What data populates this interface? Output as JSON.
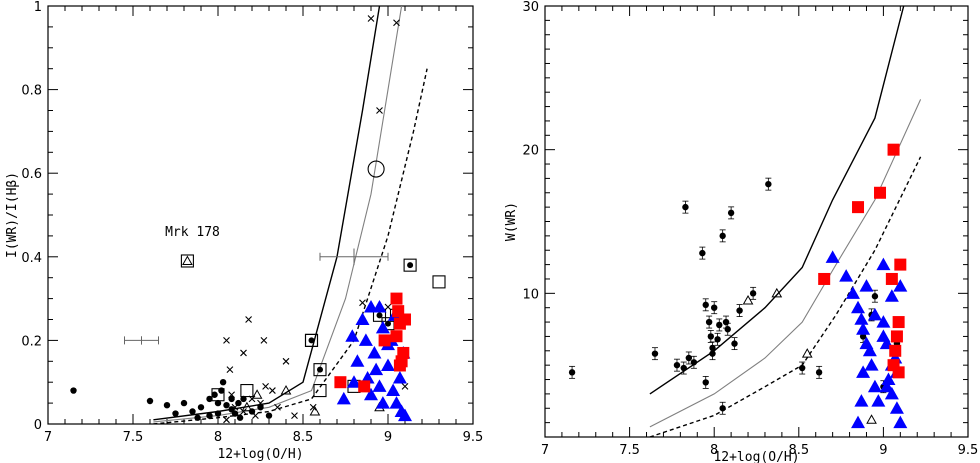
{
  "chart_data": [
    {
      "type": "scatter",
      "panel": "left",
      "xlabel": "12+log(O/H)",
      "ylabel": "I(WR)/I(Hβ)",
      "xlim": [
        7,
        9.5
      ],
      "ylim": [
        0,
        1
      ],
      "xticks": [
        7,
        7.5,
        8,
        8.5,
        9,
        9.5
      ],
      "xtick_labels": [
        "7",
        "7.5",
        "8",
        "8.5",
        "9",
        "9.5"
      ],
      "yticks": [
        0,
        0.2,
        0.4,
        0.6,
        0.8,
        1
      ],
      "ytick_labels": [
        "0",
        "0.2",
        "0.4",
        "0.6",
        "0.8",
        "1"
      ],
      "annotation": {
        "text": "Mrk 178",
        "x": 7.85,
        "y": 0.45
      },
      "curves": [
        {
          "style": "solid-black",
          "points": [
            [
              7.62,
              0.01
            ],
            [
              8.0,
              0.03
            ],
            [
              8.3,
              0.05
            ],
            [
              8.5,
              0.1
            ],
            [
              8.7,
              0.4
            ],
            [
              8.85,
              0.75
            ],
            [
              8.95,
              1.0
            ]
          ]
        },
        {
          "style": "solid-gray",
          "points": [
            [
              7.62,
              0.005
            ],
            [
              8.0,
              0.02
            ],
            [
              8.3,
              0.04
            ],
            [
              8.55,
              0.08
            ],
            [
              8.75,
              0.3
            ],
            [
              8.9,
              0.55
            ],
            [
              9.0,
              0.8
            ],
            [
              9.08,
              1.0
            ]
          ]
        },
        {
          "style": "dashed-black",
          "points": [
            [
              7.62,
              0.0
            ],
            [
              8.0,
              0.015
            ],
            [
              8.3,
              0.03
            ],
            [
              8.55,
              0.06
            ],
            [
              8.8,
              0.2
            ],
            [
              9.0,
              0.45
            ],
            [
              9.15,
              0.7
            ],
            [
              9.23,
              0.85
            ]
          ]
        }
      ],
      "error_bars": [
        {
          "x": 7.55,
          "y": 0.2,
          "xerr": 0.1,
          "yerr": 0.01
        },
        {
          "x": 8.8,
          "y": 0.4,
          "xerr": 0.2,
          "yerr": 0.02
        }
      ],
      "series": [
        {
          "marker": "filled-circle",
          "points": [
            [
              7.15,
              0.08
            ],
            [
              7.6,
              0.055
            ],
            [
              7.7,
              0.045
            ],
            [
              7.75,
              0.025
            ],
            [
              7.8,
              0.05
            ],
            [
              7.85,
              0.03
            ],
            [
              7.9,
              0.04
            ],
            [
              7.95,
              0.06
            ],
            [
              7.98,
              0.07
            ],
            [
              8.0,
              0.05
            ],
            [
              8.02,
              0.08
            ],
            [
              8.05,
              0.045
            ],
            [
              8.08,
              0.035
            ],
            [
              8.1,
              0.025
            ],
            [
              8.12,
              0.05
            ],
            [
              8.15,
              0.06
            ],
            [
              8.2,
              0.03
            ],
            [
              8.25,
              0.04
            ],
            [
              8.3,
              0.02
            ],
            [
              7.88,
              0.015
            ],
            [
              7.95,
              0.02
            ],
            [
              8.0,
              0.025
            ],
            [
              8.03,
              0.1
            ],
            [
              8.08,
              0.06
            ],
            [
              8.13,
              0.015
            ]
          ]
        },
        {
          "marker": "cross",
          "points": [
            [
              8.05,
              0.2
            ],
            [
              8.18,
              0.25
            ],
            [
              8.27,
              0.2
            ],
            [
              8.4,
              0.15
            ],
            [
              8.15,
              0.17
            ],
            [
              8.07,
              0.13
            ],
            [
              8.28,
              0.09
            ],
            [
              8.32,
              0.08
            ],
            [
              8.2,
              0.06
            ],
            [
              8.25,
              0.05
            ],
            [
              8.35,
              0.04
            ],
            [
              8.1,
              0.04
            ],
            [
              8.22,
              0.02
            ],
            [
              8.05,
              0.01
            ],
            [
              8.15,
              0.03
            ],
            [
              8.08,
              0.07
            ],
            [
              8.9,
              0.97
            ],
            [
              9.05,
              0.96
            ],
            [
              8.95,
              0.75
            ],
            [
              8.85,
              0.29
            ],
            [
              9.0,
              0.28
            ],
            [
              8.56,
              0.04
            ],
            [
              8.45,
              0.02
            ],
            [
              9.1,
              0.09
            ]
          ]
        },
        {
          "marker": "open-triangle",
          "points": [
            [
              8.23,
              0.07
            ],
            [
              8.4,
              0.08
            ],
            [
              8.57,
              0.03
            ],
            [
              8.95,
              0.04
            ],
            [
              8.17,
              0.04
            ],
            [
              7.82,
              0.39
            ]
          ]
        },
        {
          "marker": "open-square",
          "points": [
            [
              8.17,
              0.08
            ],
            [
              8.6,
              0.08
            ],
            [
              8.8,
              0.09
            ],
            [
              9.05,
              0.26
            ],
            [
              9.3,
              0.34
            ],
            [
              7.82,
              0.39
            ],
            [
              8.0,
              0.07
            ],
            [
              8.55,
              0.2
            ]
          ]
        },
        {
          "marker": "open-circle",
          "points": [
            [
              8.93,
              0.61
            ]
          ]
        },
        {
          "marker": "circled-dot",
          "points": [
            [
              9.13,
              0.38
            ],
            [
              8.55,
              0.2
            ],
            [
              8.6,
              0.13
            ],
            [
              9.0,
              0.24
            ],
            [
              8.95,
              0.26
            ]
          ]
        },
        {
          "marker": "blue-triangle",
          "color": "#0000ff",
          "points": [
            [
              8.74,
              0.06
            ],
            [
              8.8,
              0.1
            ],
            [
              8.82,
              0.15
            ],
            [
              8.85,
              0.25
            ],
            [
              8.87,
              0.2
            ],
            [
              8.9,
              0.28
            ],
            [
              8.92,
              0.17
            ],
            [
              8.93,
              0.13
            ],
            [
              8.95,
              0.09
            ],
            [
              8.97,
              0.23
            ],
            [
              9.0,
              0.14
            ],
            [
              9.02,
              0.2
            ],
            [
              9.03,
              0.08
            ],
            [
              9.05,
              0.05
            ],
            [
              9.07,
              0.11
            ],
            [
              9.08,
              0.03
            ],
            [
              9.09,
              0.17
            ],
            [
              9.1,
              0.02
            ],
            [
              8.95,
              0.28
            ],
            [
              8.97,
              0.05
            ],
            [
              8.88,
              0.11
            ],
            [
              8.9,
              0.07
            ],
            [
              9.0,
              0.19
            ],
            [
              9.04,
              0.26
            ],
            [
              8.79,
              0.21
            ]
          ]
        },
        {
          "marker": "red-square",
          "color": "#ff0000",
          "points": [
            [
              8.72,
              0.1
            ],
            [
              8.86,
              0.09
            ],
            [
              8.98,
              0.2
            ],
            [
              9.05,
              0.3
            ],
            [
              9.06,
              0.27
            ],
            [
              9.07,
              0.24
            ],
            [
              9.08,
              0.15
            ],
            [
              9.09,
              0.17
            ],
            [
              9.1,
              0.25
            ],
            [
              9.05,
              0.21
            ],
            [
              9.07,
              0.14
            ]
          ]
        }
      ]
    },
    {
      "type": "scatter",
      "panel": "right",
      "xlabel": "12+log(O/H)",
      "ylabel": "W(WR)",
      "xlim": [
        7,
        9.5
      ],
      "ylim": [
        0,
        30
      ],
      "xticks": [
        7,
        7.5,
        8,
        8.5,
        9,
        9.5
      ],
      "xtick_labels": [
        "7",
        "7.5",
        "8",
        "8.5",
        "9",
        "9.5"
      ],
      "yticks": [
        10,
        20,
        30
      ],
      "ytick_labels": [
        "10",
        "20",
        "30"
      ],
      "curves": [
        {
          "style": "solid-black",
          "points": [
            [
              7.62,
              3.0
            ],
            [
              8.0,
              6.0
            ],
            [
              8.3,
              9.0
            ],
            [
              8.52,
              11.8
            ],
            [
              8.7,
              16.5
            ],
            [
              8.95,
              22.2
            ],
            [
              9.12,
              30.0
            ]
          ]
        },
        {
          "style": "solid-gray",
          "points": [
            [
              7.62,
              0.7
            ],
            [
              8.0,
              3.0
            ],
            [
              8.3,
              5.5
            ],
            [
              8.52,
              8.0
            ],
            [
              8.72,
              12.0
            ],
            [
              8.95,
              16.5
            ],
            [
              9.22,
              23.5
            ]
          ]
        },
        {
          "style": "dashed-black",
          "points": [
            [
              7.62,
              0.0
            ],
            [
              8.0,
              1.5
            ],
            [
              8.3,
              3.5
            ],
            [
              8.52,
              5.0
            ],
            [
              8.72,
              8.5
            ],
            [
              8.95,
              13.0
            ],
            [
              9.22,
              19.5
            ]
          ]
        }
      ],
      "series": [
        {
          "marker": "filled-circle-errorbar",
          "points": [
            [
              7.16,
              4.5
            ],
            [
              7.65,
              5.8
            ],
            [
              7.78,
              5.0
            ],
            [
              7.83,
              16.0
            ],
            [
              7.85,
              5.5
            ],
            [
              7.93,
              12.8
            ],
            [
              7.95,
              9.2
            ],
            [
              7.97,
              8.0
            ],
            [
              7.98,
              7.0
            ],
            [
              7.99,
              5.8
            ],
            [
              8.0,
              9.0
            ],
            [
              8.02,
              6.8
            ],
            [
              8.05,
              14.0
            ],
            [
              8.07,
              8.0
            ],
            [
              8.08,
              7.5
            ],
            [
              8.1,
              15.6
            ],
            [
              8.12,
              6.5
            ],
            [
              8.15,
              8.8
            ],
            [
              8.32,
              17.6
            ],
            [
              8.23,
              10.0
            ],
            [
              8.52,
              4.8
            ],
            [
              8.62,
              4.5
            ],
            [
              8.95,
              9.8
            ],
            [
              8.88,
              7.0
            ],
            [
              8.93,
              8.5
            ],
            [
              9.08,
              6.5
            ],
            [
              9.0,
              3.5
            ],
            [
              8.05,
              2.0
            ],
            [
              7.95,
              3.8
            ],
            [
              7.88,
              5.2
            ],
            [
              7.82,
              4.8
            ],
            [
              7.99,
              6.2
            ],
            [
              8.03,
              7.8
            ]
          ]
        },
        {
          "marker": "open-triangle",
          "points": [
            [
              8.37,
              10.0
            ],
            [
              8.55,
              5.8
            ],
            [
              8.93,
              1.2
            ],
            [
              8.2,
              9.5
            ]
          ]
        },
        {
          "marker": "blue-triangle",
          "color": "#0000ff",
          "points": [
            [
              8.7,
              12.5
            ],
            [
              8.78,
              11.2
            ],
            [
              8.82,
              10.0
            ],
            [
              8.85,
              9.0
            ],
            [
              8.87,
              8.2
            ],
            [
              8.88,
              7.5
            ],
            [
              8.9,
              10.5
            ],
            [
              8.92,
              6.0
            ],
            [
              8.93,
              5.0
            ],
            [
              8.95,
              3.5
            ],
            [
              8.97,
              2.5
            ],
            [
              9.0,
              8.0
            ],
            [
              9.02,
              6.5
            ],
            [
              9.03,
              4.0
            ],
            [
              9.05,
              3.0
            ],
            [
              9.07,
              5.5
            ],
            [
              9.08,
              2.0
            ],
            [
              9.1,
              1.0
            ],
            [
              8.85,
              1.0
            ],
            [
              8.87,
              2.5
            ],
            [
              8.88,
              4.5
            ],
            [
              9.0,
              12.0
            ],
            [
              9.05,
              9.8
            ],
            [
              9.1,
              10.5
            ],
            [
              8.9,
              6.5
            ],
            [
              8.95,
              8.5
            ],
            [
              9.0,
              7.0
            ],
            [
              9.05,
              5.0
            ],
            [
              9.08,
              4.5
            ],
            [
              9.02,
              3.5
            ]
          ]
        },
        {
          "marker": "red-square",
          "color": "#ff0000",
          "points": [
            [
              8.65,
              11.0
            ],
            [
              8.85,
              16.0
            ],
            [
              8.98,
              17.0
            ],
            [
              9.06,
              20.0
            ],
            [
              9.05,
              11.0
            ],
            [
              9.1,
              12.0
            ],
            [
              9.09,
              8.0
            ],
            [
              9.08,
              7.0
            ],
            [
              9.07,
              6.0
            ],
            [
              9.06,
              5.0
            ],
            [
              9.09,
              4.5
            ]
          ]
        }
      ]
    }
  ]
}
